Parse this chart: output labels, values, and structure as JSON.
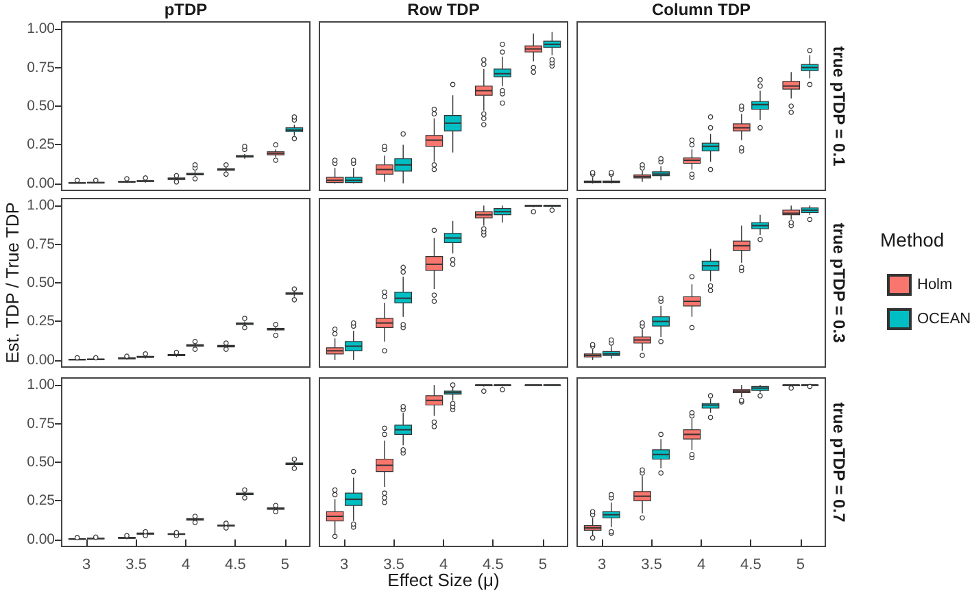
{
  "chart_data": [
    {
      "type": "box",
      "title": "pTDP",
      "categories": [
        "3",
        "3.5",
        "4",
        "4.5",
        "5"
      ],
      "ylim": [
        -0.045,
        1.045
      ],
      "yticks": [
        {
          "value": 0,
          "label": "0.00"
        },
        {
          "value": 0.25,
          "label": "0.25"
        },
        {
          "value": 0.5,
          "label": "0.50"
        },
        {
          "value": 0.75,
          "label": "0.75"
        },
        {
          "value": 1,
          "label": "1.00"
        }
      ],
      "tick_labels": "y",
      "series": [
        {
          "color": "#f8766d",
          "boxes": [
            {
              "low": 0,
              "q1": 0.001,
              "median": 0.003,
              "q3": 0.005,
              "high": 0.01,
              "outliers": [
                0.02
              ]
            },
            {
              "low": 0.003,
              "q1": 0.008,
              "median": 0.01,
              "q3": 0.013,
              "high": 0.02,
              "outliers": [
                0.03
              ]
            },
            {
              "low": 0.015,
              "q1": 0.025,
              "median": 0.03,
              "q3": 0.035,
              "high": 0.045,
              "outliers": [
                0.01,
                0.05
              ]
            },
            {
              "low": 0.075,
              "q1": 0.085,
              "median": 0.09,
              "q3": 0.095,
              "high": 0.105,
              "outliers": [
                0.06,
                0.12
              ]
            },
            {
              "low": 0.17,
              "q1": 0.185,
              "median": 0.195,
              "q3": 0.205,
              "high": 0.22,
              "outliers": [
                0.15,
                0.25
              ]
            }
          ]
        },
        {
          "color": "#00bfc4",
          "boxes": [
            {
              "low": 0,
              "q1": 0.003,
              "median": 0.005,
              "q3": 0.007,
              "high": 0.012,
              "outliers": [
                0.02
              ]
            },
            {
              "low": 0.005,
              "q1": 0.012,
              "median": 0.015,
              "q3": 0.018,
              "high": 0.025,
              "outliers": [
                0.035
              ]
            },
            {
              "low": 0.045,
              "q1": 0.055,
              "median": 0.06,
              "q3": 0.065,
              "high": 0.08,
              "outliers": [
                0.03,
                0.1,
                0.12
              ]
            },
            {
              "low": 0.16,
              "q1": 0.17,
              "median": 0.175,
              "q3": 0.18,
              "high": 0.19,
              "outliers": [
                0.22,
                0.24
              ]
            },
            {
              "low": 0.31,
              "q1": 0.335,
              "median": 0.345,
              "q3": 0.36,
              "high": 0.38,
              "outliers": [
                0.29,
                0.41,
                0.43
              ]
            }
          ]
        }
      ]
    },
    {
      "type": "box",
      "title": "Row TDP",
      "categories": [
        "3",
        "3.5",
        "4",
        "4.5",
        "5"
      ],
      "ylim": [
        -0.045,
        1.045
      ],
      "tick_labels": false,
      "series": [
        {
          "color": "#f8766d",
          "boxes": [
            {
              "low": 0,
              "q1": 0.005,
              "median": 0.02,
              "q3": 0.04,
              "high": 0.1,
              "outliers": [
                0.13,
                0.15
              ]
            },
            {
              "low": 0.01,
              "q1": 0.06,
              "median": 0.09,
              "q3": 0.12,
              "high": 0.18,
              "outliers": [
                0.22,
                0.24
              ]
            },
            {
              "low": 0.14,
              "q1": 0.24,
              "median": 0.28,
              "q3": 0.31,
              "high": 0.42,
              "outliers": [
                0.09,
                0.12,
                0.45,
                0.48
              ]
            },
            {
              "low": 0.47,
              "q1": 0.57,
              "median": 0.6,
              "q3": 0.63,
              "high": 0.74,
              "outliers": [
                0.38,
                0.42,
                0.45,
                0.77,
                0.8
              ]
            },
            {
              "low": 0.79,
              "q1": 0.85,
              "median": 0.87,
              "q3": 0.89,
              "high": 0.97,
              "outliers": [
                0.72,
                0.75
              ]
            }
          ]
        },
        {
          "color": "#00bfc4",
          "boxes": [
            {
              "low": 0,
              "q1": 0.005,
              "median": 0.02,
              "q3": 0.04,
              "high": 0.1,
              "outliers": [
                0.13,
                0.15
              ]
            },
            {
              "low": 0,
              "q1": 0.08,
              "median": 0.12,
              "q3": 0.16,
              "high": 0.25,
              "outliers": [
                0.32
              ]
            },
            {
              "low": 0.2,
              "q1": 0.34,
              "median": 0.39,
              "q3": 0.44,
              "high": 0.57,
              "outliers": [
                0.64
              ]
            },
            {
              "low": 0.63,
              "q1": 0.69,
              "median": 0.71,
              "q3": 0.74,
              "high": 0.82,
              "outliers": [
                0.52,
                0.58,
                0.6,
                0.85,
                0.9
              ]
            },
            {
              "low": 0.83,
              "q1": 0.88,
              "median": 0.9,
              "q3": 0.92,
              "high": 0.98,
              "outliers": [
                0.76,
                0.78,
                0.8
              ]
            }
          ]
        }
      ]
    },
    {
      "type": "box",
      "title": "Column TDP",
      "annotations": [
        "true pTDP = 0.1"
      ],
      "categories": [
        "3",
        "3.5",
        "4",
        "4.5",
        "5"
      ],
      "ylim": [
        -0.045,
        1.045
      ],
      "tick_labels": false,
      "series": [
        {
          "color": "#f8766d",
          "boxes": [
            {
              "low": 0,
              "q1": 0.005,
              "median": 0.01,
              "q3": 0.015,
              "high": 0.04,
              "outliers": [
                0.06,
                0.07
              ]
            },
            {
              "low": 0.01,
              "q1": 0.035,
              "median": 0.045,
              "q3": 0.055,
              "high": 0.08,
              "outliers": [
                0.1,
                0.12
              ]
            },
            {
              "low": 0.09,
              "q1": 0.13,
              "median": 0.15,
              "q3": 0.165,
              "high": 0.22,
              "outliers": [
                0.04,
                0.06,
                0.25,
                0.28
              ]
            },
            {
              "low": 0.28,
              "q1": 0.34,
              "median": 0.36,
              "q3": 0.385,
              "high": 0.45,
              "outliers": [
                0.21,
                0.23,
                0.48,
                0.5
              ]
            },
            {
              "low": 0.55,
              "q1": 0.61,
              "median": 0.63,
              "q3": 0.66,
              "high": 0.72,
              "outliers": [
                0.46,
                0.5
              ]
            }
          ]
        },
        {
          "color": "#00bfc4",
          "boxes": [
            {
              "low": 0,
              "q1": 0.005,
              "median": 0.01,
              "q3": 0.015,
              "high": 0.04,
              "outliers": [
                0.06,
                0.07
              ]
            },
            {
              "low": 0.02,
              "q1": 0.05,
              "median": 0.06,
              "q3": 0.075,
              "high": 0.11,
              "outliers": [
                0.14,
                0.16
              ]
            },
            {
              "low": 0.14,
              "q1": 0.21,
              "median": 0.24,
              "q3": 0.26,
              "high": 0.32,
              "outliers": [
                0.09,
                0.36,
                0.43
              ]
            },
            {
              "low": 0.41,
              "q1": 0.48,
              "median": 0.51,
              "q3": 0.53,
              "high": 0.6,
              "outliers": [
                0.36,
                0.63,
                0.67
              ]
            },
            {
              "low": 0.68,
              "q1": 0.73,
              "median": 0.75,
              "q3": 0.77,
              "high": 0.83,
              "outliers": [
                0.64,
                0.86
              ]
            }
          ]
        }
      ]
    },
    {
      "type": "box",
      "ylabel": "Est. TDP / True TDP",
      "categories": [
        "3",
        "3.5",
        "4",
        "4.5",
        "5"
      ],
      "ylim": [
        -0.045,
        1.045
      ],
      "yticks": [
        {
          "value": 0,
          "label": "0.00"
        },
        {
          "value": 0.25,
          "label": "0.25"
        },
        {
          "value": 0.5,
          "label": "0.50"
        },
        {
          "value": 0.75,
          "label": "0.75"
        },
        {
          "value": 1,
          "label": "1.00"
        }
      ],
      "tick_labels": "y",
      "series": [
        {
          "color": "#f8766d",
          "boxes": [
            {
              "low": 0,
              "q1": 0.001,
              "median": 0.003,
              "q3": 0.005,
              "high": 0.008,
              "outliers": [
                0.015
              ]
            },
            {
              "low": 0.003,
              "q1": 0.008,
              "median": 0.012,
              "q3": 0.015,
              "high": 0.02,
              "outliers": [
                0.025
              ]
            },
            {
              "low": 0.02,
              "q1": 0.028,
              "median": 0.032,
              "q3": 0.036,
              "high": 0.045,
              "outliers": [
                0.05
              ]
            },
            {
              "low": 0.075,
              "q1": 0.085,
              "median": 0.09,
              "q3": 0.095,
              "high": 0.105,
              "outliers": [
                0.07,
                0.11
              ]
            },
            {
              "low": 0.185,
              "q1": 0.195,
              "median": 0.2,
              "q3": 0.205,
              "high": 0.215,
              "outliers": [
                0.16,
                0.23
              ]
            }
          ]
        },
        {
          "color": "#00bfc4",
          "boxes": [
            {
              "low": 0.001,
              "q1": 0.003,
              "median": 0.005,
              "q3": 0.007,
              "high": 0.01,
              "outliers": [
                0.015
              ]
            },
            {
              "low": 0.01,
              "q1": 0.017,
              "median": 0.02,
              "q3": 0.024,
              "high": 0.03,
              "outliers": [
                0.04
              ]
            },
            {
              "low": 0.08,
              "q1": 0.09,
              "median": 0.095,
              "q3": 0.1,
              "high": 0.11,
              "outliers": [
                0.07,
                0.12
              ]
            },
            {
              "low": 0.22,
              "q1": 0.23,
              "median": 0.235,
              "q3": 0.24,
              "high": 0.25,
              "outliers": [
                0.21,
                0.27
              ]
            },
            {
              "low": 0.41,
              "q1": 0.425,
              "median": 0.43,
              "q3": 0.435,
              "high": 0.45,
              "outliers": [
                0.39,
                0.46
              ]
            }
          ]
        }
      ]
    },
    {
      "type": "box",
      "categories": [
        "3",
        "3.5",
        "4",
        "4.5",
        "5"
      ],
      "ylim": [
        -0.045,
        1.045
      ],
      "tick_labels": false,
      "series": [
        {
          "color": "#f8766d",
          "boxes": [
            {
              "low": 0,
              "q1": 0.04,
              "median": 0.06,
              "q3": 0.08,
              "high": 0.14,
              "outliers": [
                0.17,
                0.2
              ]
            },
            {
              "low": 0.12,
              "q1": 0.21,
              "median": 0.24,
              "q3": 0.27,
              "high": 0.37,
              "outliers": [
                0.06,
                0.41,
                0.44
              ]
            },
            {
              "low": 0.46,
              "q1": 0.58,
              "median": 0.62,
              "q3": 0.67,
              "high": 0.79,
              "outliers": [
                0.38,
                0.42,
                0.84
              ]
            },
            {
              "low": 0.87,
              "q1": 0.92,
              "median": 0.94,
              "q3": 0.96,
              "high": 1,
              "outliers": [
                0.81,
                0.83,
                0.85
              ]
            },
            {
              "low": 0.99,
              "q1": 0.995,
              "median": 1,
              "q3": 1,
              "high": 1,
              "outliers": [
                0.96
              ]
            }
          ]
        },
        {
          "color": "#00bfc4",
          "boxes": [
            {
              "low": 0,
              "q1": 0.06,
              "median": 0.09,
              "q3": 0.12,
              "high": 0.19,
              "outliers": [
                0.22,
                0.24
              ]
            },
            {
              "low": 0.28,
              "q1": 0.37,
              "median": 0.4,
              "q3": 0.44,
              "high": 0.54,
              "outliers": [
                0.21,
                0.23,
                0.57,
                0.6
              ]
            },
            {
              "low": 0.69,
              "q1": 0.76,
              "median": 0.79,
              "q3": 0.82,
              "high": 0.9,
              "outliers": [
                0.62,
                0.65
              ]
            },
            {
              "low": 0.89,
              "q1": 0.94,
              "median": 0.96,
              "q3": 0.98,
              "high": 1
            },
            {
              "low": 0.99,
              "q1": 0.995,
              "median": 1,
              "q3": 1,
              "high": 1,
              "outliers": [
                0.97
              ]
            }
          ]
        }
      ]
    },
    {
      "type": "box",
      "annotations": [
        "true pTDP = 0.3"
      ],
      "legend": "right",
      "legend_title": "Method",
      "categories": [
        "3",
        "3.5",
        "4",
        "4.5",
        "5"
      ],
      "ylim": [
        -0.045,
        1.045
      ],
      "tick_labels": false,
      "series": [
        {
          "name": "Holm",
          "color": "#f8766d",
          "boxes": [
            {
              "low": 0,
              "q1": 0.02,
              "median": 0.03,
              "q3": 0.04,
              "high": 0.07,
              "outliers": [
                0.09,
                0.1
              ]
            },
            {
              "low": 0.06,
              "q1": 0.11,
              "median": 0.13,
              "q3": 0.15,
              "high": 0.2,
              "outliers": [
                0.03,
                0.22,
                0.24
              ]
            },
            {
              "low": 0.28,
              "q1": 0.35,
              "median": 0.38,
              "q3": 0.41,
              "high": 0.49,
              "outliers": [
                0.21,
                0.54
              ]
            },
            {
              "low": 0.63,
              "q1": 0.71,
              "median": 0.74,
              "q3": 0.77,
              "high": 0.87,
              "outliers": [
                0.58,
                0.6
              ]
            },
            {
              "low": 0.91,
              "q1": 0.94,
              "median": 0.95,
              "q3": 0.97,
              "high": 1,
              "outliers": [
                0.87,
                0.89
              ]
            }
          ]
        },
        {
          "name": "OCEAN",
          "color": "#00bfc4",
          "boxes": [
            {
              "low": 0.01,
              "q1": 0.03,
              "median": 0.04,
              "q3": 0.055,
              "high": 0.09,
              "outliers": [
                0.11,
                0.13
              ]
            },
            {
              "low": 0.15,
              "q1": 0.22,
              "median": 0.25,
              "q3": 0.28,
              "high": 0.35,
              "outliers": [
                0.12,
                0.38,
                0.4
              ]
            },
            {
              "low": 0.51,
              "q1": 0.58,
              "median": 0.61,
              "q3": 0.64,
              "high": 0.72,
              "outliers": [
                0.45,
                0.48
              ]
            },
            {
              "low": 0.81,
              "q1": 0.85,
              "median": 0.87,
              "q3": 0.89,
              "high": 0.94,
              "outliers": [
                0.78
              ]
            },
            {
              "low": 0.94,
              "q1": 0.955,
              "median": 0.97,
              "q3": 0.985,
              "high": 1,
              "outliers": [
                0.91
              ]
            }
          ]
        }
      ]
    },
    {
      "type": "box",
      "categories": [
        "3",
        "3.5",
        "4",
        "4.5",
        "5"
      ],
      "ylim": [
        -0.045,
        1.045
      ],
      "yticks": [
        {
          "value": 0,
          "label": "0.00"
        },
        {
          "value": 0.25,
          "label": "0.25"
        },
        {
          "value": 0.5,
          "label": "0.50"
        },
        {
          "value": 0.75,
          "label": "0.75"
        },
        {
          "value": 1,
          "label": "1.00"
        }
      ],
      "series": [
        {
          "color": "#f8766d",
          "boxes": [
            {
              "low": 0,
              "q1": 0.001,
              "median": 0.003,
              "q3": 0.005,
              "high": 0.008,
              "outliers": [
                0.012
              ]
            },
            {
              "low": 0.002,
              "q1": 0.007,
              "median": 0.01,
              "q3": 0.014,
              "high": 0.02,
              "outliers": [
                0.025
              ]
            },
            {
              "low": 0.027,
              "q1": 0.032,
              "median": 0.035,
              "q3": 0.038,
              "high": 0.043,
              "outliers": [
                0.025,
                0.045
              ]
            },
            {
              "low": 0.08,
              "q1": 0.087,
              "median": 0.09,
              "q3": 0.093,
              "high": 0.1,
              "outliers": [
                0.075,
                0.105
              ]
            },
            {
              "low": 0.185,
              "q1": 0.195,
              "median": 0.2,
              "q3": 0.205,
              "high": 0.215,
              "outliers": [
                0.18,
                0.22
              ]
            }
          ]
        },
        {
          "color": "#00bfc4",
          "boxes": [
            {
              "low": 0.002,
              "q1": 0.004,
              "median": 0.006,
              "q3": 0.008,
              "high": 0.011,
              "outliers": [
                0.015
              ]
            },
            {
              "low": 0.028,
              "q1": 0.034,
              "median": 0.038,
              "q3": 0.042,
              "high": 0.048,
              "outliers": [
                0.025,
                0.05
              ]
            },
            {
              "low": 0.115,
              "q1": 0.125,
              "median": 0.13,
              "q3": 0.135,
              "high": 0.145,
              "outliers": [
                0.11,
                0.15
              ]
            },
            {
              "low": 0.28,
              "q1": 0.29,
              "median": 0.295,
              "q3": 0.3,
              "high": 0.31,
              "outliers": [
                0.27,
                0.32
              ]
            },
            {
              "low": 0.475,
              "q1": 0.485,
              "median": 0.49,
              "q3": 0.495,
              "high": 0.505,
              "outliers": [
                0.46,
                0.52
              ]
            }
          ]
        }
      ]
    },
    {
      "type": "box",
      "xlabel": "Effect Size (μ)",
      "categories": [
        "3",
        "3.5",
        "4",
        "4.5",
        "5"
      ],
      "ylim": [
        -0.045,
        1.045
      ],
      "tick_labels": "x",
      "series": [
        {
          "color": "#f8766d",
          "boxes": [
            {
              "low": 0.03,
              "q1": 0.12,
              "median": 0.15,
              "q3": 0.18,
              "high": 0.26,
              "outliers": [
                0.02,
                0.29,
                0.32
              ]
            },
            {
              "low": 0.34,
              "q1": 0.44,
              "median": 0.48,
              "q3": 0.52,
              "high": 0.64,
              "outliers": [
                0.24,
                0.27,
                0.3,
                0.68,
                0.72
              ]
            },
            {
              "low": 0.8,
              "q1": 0.87,
              "median": 0.9,
              "q3": 0.93,
              "high": 1,
              "outliers": [
                0.73,
                0.76
              ]
            },
            {
              "low": 0.99,
              "q1": 0.995,
              "median": 1,
              "q3": 1,
              "high": 1,
              "outliers": [
                0.96
              ]
            },
            {
              "low": 1,
              "q1": 1,
              "median": 1,
              "q3": 1,
              "high": 1
            }
          ]
        },
        {
          "color": "#00bfc4",
          "boxes": [
            {
              "low": 0.12,
              "q1": 0.22,
              "median": 0.26,
              "q3": 0.3,
              "high": 0.4,
              "outliers": [
                0.08,
                0.1,
                0.44
              ]
            },
            {
              "low": 0.61,
              "q1": 0.68,
              "median": 0.71,
              "q3": 0.74,
              "high": 0.82,
              "outliers": [
                0.56,
                0.58,
                0.84,
                0.86
              ]
            },
            {
              "low": 0.9,
              "q1": 0.94,
              "median": 0.95,
              "q3": 0.96,
              "high": 0.99,
              "outliers": [
                0.84,
                0.86,
                0.88,
                1
              ]
            },
            {
              "low": 0.99,
              "q1": 0.995,
              "median": 1,
              "q3": 1,
              "high": 1,
              "outliers": [
                0.97
              ]
            },
            {
              "low": 1,
              "q1": 1,
              "median": 1,
              "q3": 1,
              "high": 1
            }
          ]
        }
      ]
    },
    {
      "type": "box",
      "annotations": [
        "true pTDP = 0.7"
      ],
      "categories": [
        "3",
        "3.5",
        "4",
        "4.5",
        "5"
      ],
      "ylim": [
        -0.045,
        1.045
      ],
      "tick_labels": "x",
      "series": [
        {
          "color": "#f8766d",
          "boxes": [
            {
              "low": 0.02,
              "q1": 0.06,
              "median": 0.075,
              "q3": 0.09,
              "high": 0.14,
              "outliers": [
                0.01,
                0.16,
                0.18
              ]
            },
            {
              "low": 0.17,
              "q1": 0.25,
              "median": 0.28,
              "q3": 0.31,
              "high": 0.41,
              "outliers": [
                0.14,
                0.43,
                0.45
              ]
            },
            {
              "low": 0.58,
              "q1": 0.65,
              "median": 0.68,
              "q3": 0.71,
              "high": 0.78,
              "outliers": [
                0.53,
                0.55,
                0.8,
                0.82
              ]
            },
            {
              "low": 0.92,
              "q1": 0.95,
              "median": 0.96,
              "q3": 0.97,
              "high": 1,
              "outliers": [
                0.89,
                0.9
              ]
            },
            {
              "low": 0.99,
              "q1": 0.995,
              "median": 1,
              "q3": 1,
              "high": 1,
              "outliers": [
                0.98
              ]
            }
          ]
        },
        {
          "color": "#00bfc4",
          "boxes": [
            {
              "low": 0.08,
              "q1": 0.14,
              "median": 0.16,
              "q3": 0.18,
              "high": 0.24,
              "outliers": [
                0.04,
                0.05,
                0.27,
                0.29
              ]
            },
            {
              "low": 0.46,
              "q1": 0.52,
              "median": 0.55,
              "q3": 0.58,
              "high": 0.65,
              "outliers": [
                0.43,
                0.68
              ]
            },
            {
              "low": 0.82,
              "q1": 0.85,
              "median": 0.87,
              "q3": 0.88,
              "high": 0.91,
              "outliers": [
                0.79,
                0.93
              ]
            },
            {
              "low": 0.95,
              "q1": 0.965,
              "median": 0.98,
              "q3": 0.99,
              "high": 1,
              "outliers": [
                0.93
              ]
            },
            {
              "low": 0.99,
              "q1": 0.995,
              "median": 1,
              "q3": 1,
              "high": 1,
              "outliers": [
                0.99
              ]
            }
          ]
        }
      ]
    }
  ]
}
